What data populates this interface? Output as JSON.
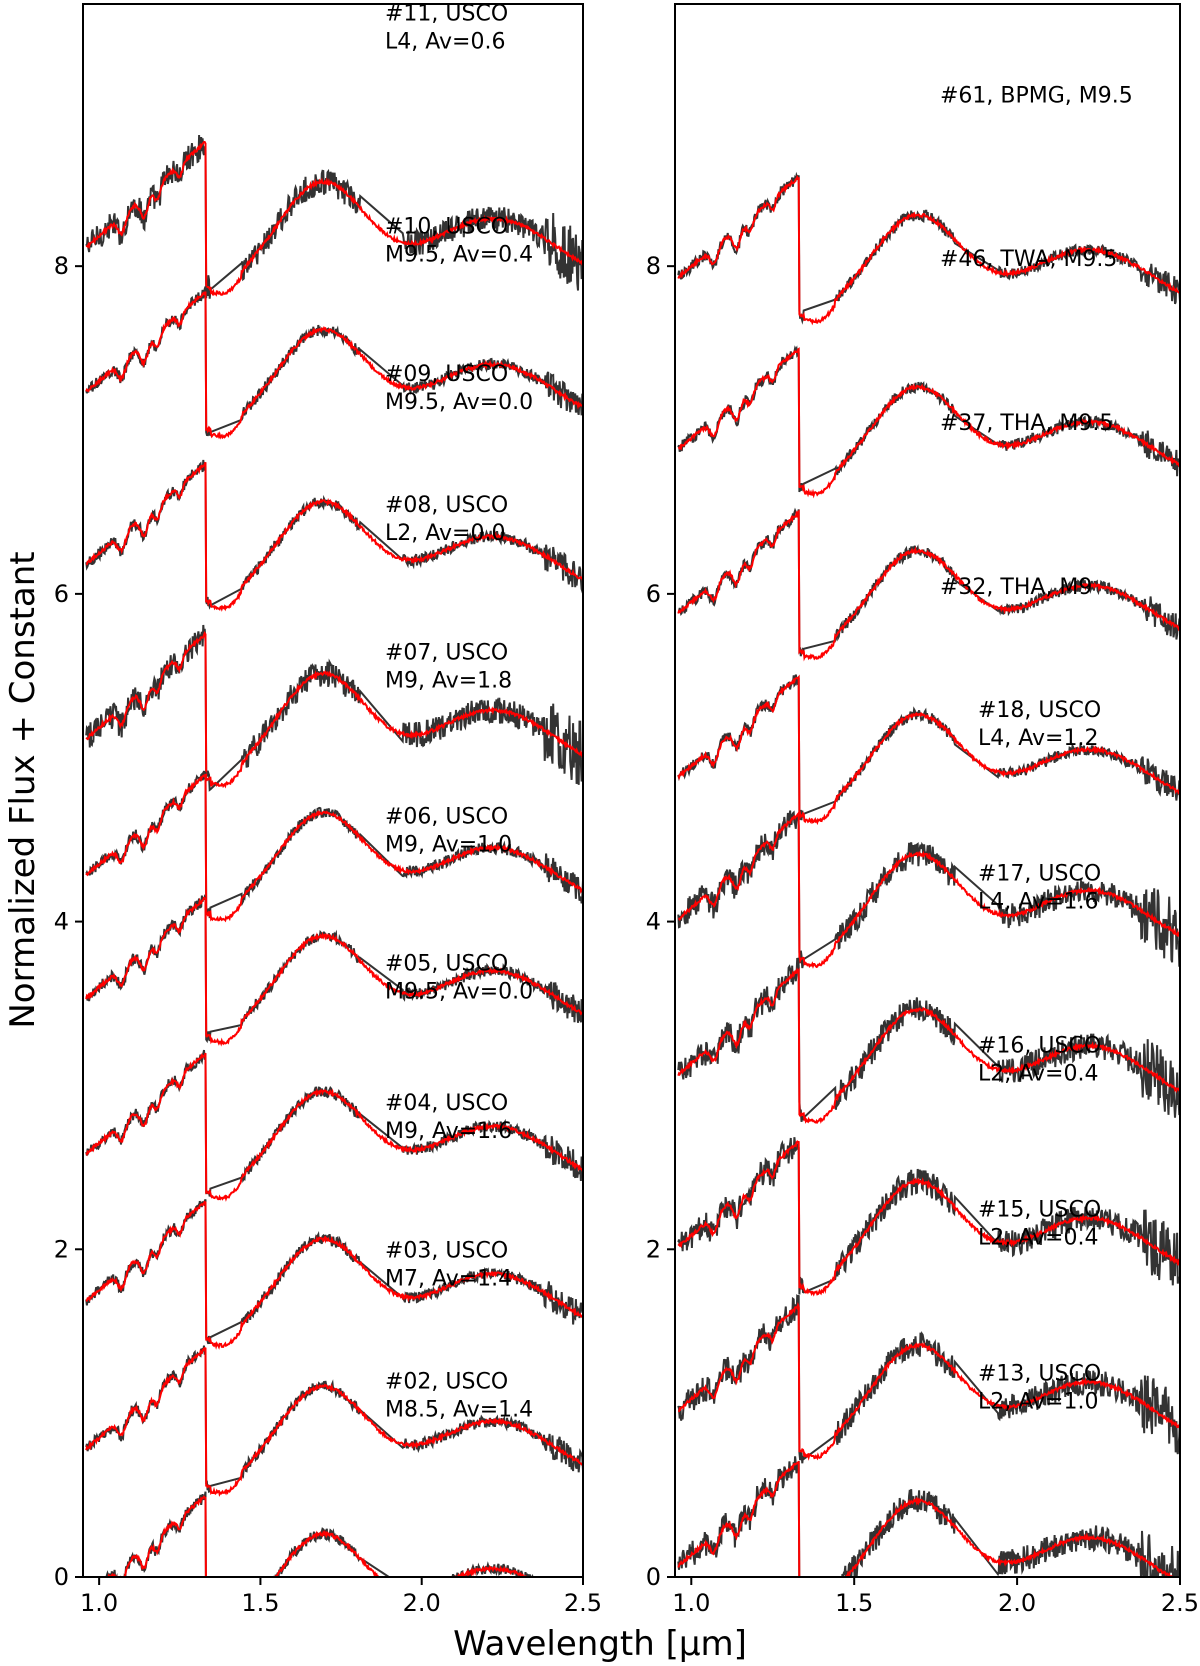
{
  "figure": {
    "ylabel": "Normalized Flux + Constant",
    "xlabel": "Wavelength [μm]"
  },
  "colors": {
    "observed": "#333333",
    "model": "#ff0000",
    "axes": "#000000"
  },
  "chart_data": [
    {
      "type": "line",
      "panel": "left",
      "xlim": [
        0.95,
        2.5
      ],
      "ylim": [
        0,
        9.6
      ],
      "xticks": [
        "1.0",
        "1.5",
        "2.0",
        "2.5"
      ],
      "xtick_values": [
        1.0,
        1.5,
        2.0,
        2.5
      ],
      "yticks": [
        "0",
        "2",
        "4",
        "6",
        "8"
      ],
      "ytick_values": [
        0,
        2,
        4,
        6,
        8
      ],
      "series": [
        {
          "offset": 8.5,
          "label": [
            "#11, USCO",
            "L4, Av=0.6"
          ],
          "label_y": 9.5,
          "late": true
        },
        {
          "offset": 7.6,
          "label": [
            "#10, USCO",
            "M9.5, Av=0.4"
          ],
          "label_y": 8.2,
          "late": false
        },
        {
          "offset": 6.55,
          "label": [
            "#09, USCO",
            "M9.5, Av=0.0"
          ],
          "label_y": 7.3,
          "late": false
        },
        {
          "offset": 5.5,
          "label": [
            "#08, USCO",
            "L2, Av=0.0"
          ],
          "label_y": 6.5,
          "late": true
        },
        {
          "offset": 4.65,
          "label": [
            "#07, USCO",
            "M9, Av=1.8"
          ],
          "label_y": 5.6,
          "late": false
        },
        {
          "offset": 3.9,
          "label": [
            "#06, USCO",
            "M9, Av=1.0"
          ],
          "label_y": 4.6,
          "late": false
        },
        {
          "offset": 2.95,
          "label": [
            "#05, USCO",
            "M9.5, Av=0.0"
          ],
          "label_y": 3.7,
          "late": false
        },
        {
          "offset": 2.05,
          "label": [
            "#04, USCO",
            "M9, Av=1.6"
          ],
          "label_y": 2.85,
          "late": false
        },
        {
          "offset": 1.15,
          "label": [
            "#03, USCO",
            "M7, Av=1.4"
          ],
          "label_y": 1.95,
          "late": false
        },
        {
          "offset": 0.25,
          "label": [
            "#02, USCO",
            "M8.5, Av=1.4"
          ],
          "label_y": 1.15,
          "late": false
        }
      ]
    },
    {
      "type": "line",
      "panel": "right",
      "xlim": [
        0.95,
        2.5
      ],
      "ylim": [
        0,
        9.6
      ],
      "xticks": [
        "1.0",
        "1.5",
        "2.0",
        "2.5"
      ],
      "xtick_values": [
        1.0,
        1.5,
        2.0,
        2.5
      ],
      "yticks": [
        "0",
        "2",
        "4",
        "6",
        "8"
      ],
      "ytick_values": [
        0,
        2,
        4,
        6,
        8
      ],
      "series": [
        {
          "offset": 8.3,
          "label": [
            "#61, BPMG, M9.5"
          ],
          "label_y": 9.0,
          "late": false
        },
        {
          "offset": 7.25,
          "label": [
            "#46, TWA, M9.5"
          ],
          "label_y": 8.0,
          "late": false
        },
        {
          "offset": 6.25,
          "label": [
            "#37, THA, M9.5"
          ],
          "label_y": 7.0,
          "late": false
        },
        {
          "offset": 5.25,
          "label": [
            "#32, THA, M9"
          ],
          "label_y": 6.0,
          "late": false
        },
        {
          "offset": 4.4,
          "label": [
            "#18, USCO",
            "L4, Av=1.2"
          ],
          "label_y": 5.25,
          "late": true
        },
        {
          "offset": 3.45,
          "label": [
            "#17, USCO",
            "L4, Av=1.6"
          ],
          "label_y": 4.25,
          "late": true
        },
        {
          "offset": 2.4,
          "label": [
            "#16, USCO",
            "L2, Av=0.4"
          ],
          "label_y": 3.2,
          "late": true
        },
        {
          "offset": 1.4,
          "label": [
            "#15, USCO",
            "L2, Av=0.4"
          ],
          "label_y": 2.2,
          "late": true
        },
        {
          "offset": 0.45,
          "label": [
            "#13, USCO",
            "L2, Av=1.0"
          ],
          "label_y": 1.2,
          "late": true
        }
      ]
    }
  ]
}
